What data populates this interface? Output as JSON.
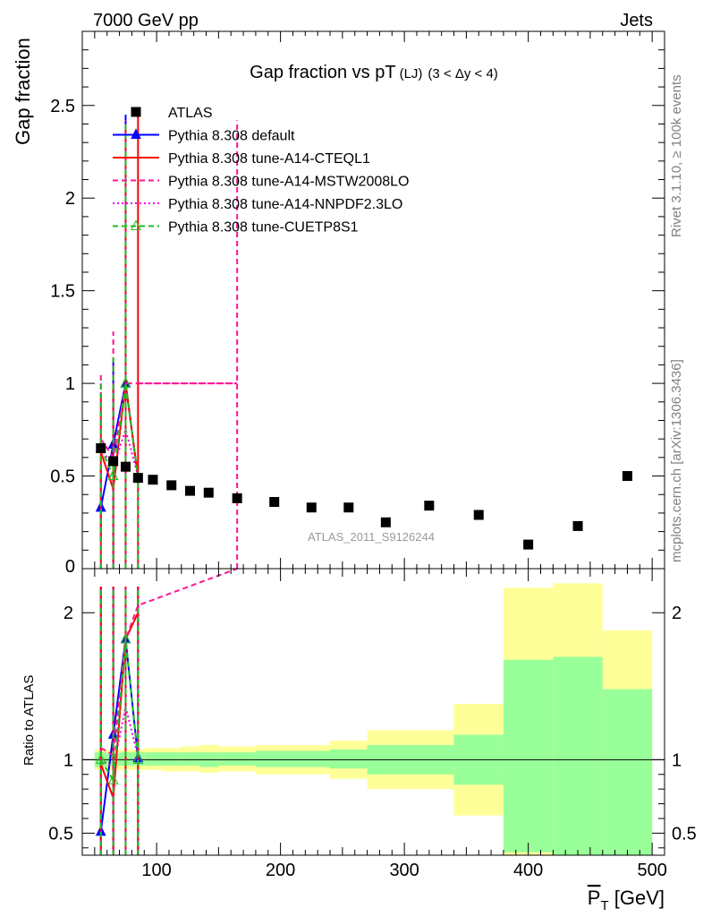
{
  "header": {
    "energy_label": "7000 GeV pp",
    "process_label": "Jets",
    "side_label_rivet": "Rivet 3.1.10, ≥ 100k events",
    "side_label_ref": "mcplots.cern.ch [arXiv:1306.3436]",
    "watermark": "ATLAS_2011_S9126244"
  },
  "chart_data": [
    {
      "type": "scatter",
      "title": "Gap fraction vs pT",
      "title_sub": "(LJ)",
      "title_range": "(3 < Δy < 4)",
      "ylabel": "Gap fraction",
      "xlabel": "P̅T [GeV]",
      "xlim": [
        40,
        510
      ],
      "ylim": [
        0,
        2.9
      ],
      "yticks": [
        "0.5",
        "1",
        "1.5",
        "2",
        "2.5"
      ],
      "xticks": [
        "100",
        "200",
        "300",
        "400",
        "500"
      ],
      "legend_position": "top-left",
      "legend": [
        {
          "label": "ATLAS",
          "style": "marker",
          "color": "#000000"
        },
        {
          "label": "Pythia 8.308 default",
          "style": "solid-triangle",
          "color": "#0000ff"
        },
        {
          "label": "Pythia 8.308 tune-A14-CTEQL1",
          "style": "solid",
          "color": "#ff0000"
        },
        {
          "label": "Pythia 8.308 tune-A14-MSTW2008LO",
          "style": "dashed",
          "color": "#ff1493"
        },
        {
          "label": "Pythia 8.308 tune-A14-NNPDF2.3LO",
          "style": "dotted",
          "color": "#ee00ee"
        },
        {
          "label": "Pythia 8.308 tune-CUETP8S1",
          "style": "dashed-triangle",
          "color": "#22bb22"
        }
      ],
      "atlas": [
        {
          "x": 55,
          "y": 0.65
        },
        {
          "x": 65,
          "y": 0.58
        },
        {
          "x": 75,
          "y": 0.55
        },
        {
          "x": 85,
          "y": 0.49
        },
        {
          "x": 97,
          "y": 0.48
        },
        {
          "x": 112,
          "y": 0.45
        },
        {
          "x": 127,
          "y": 0.42
        },
        {
          "x": 142,
          "y": 0.41
        },
        {
          "x": 165,
          "y": 0.38
        },
        {
          "x": 195,
          "y": 0.36
        },
        {
          "x": 225,
          "y": 0.33
        },
        {
          "x": 255,
          "y": 0.33
        },
        {
          "x": 285,
          "y": 0.25
        },
        {
          "x": 320,
          "y": 0.34
        },
        {
          "x": 360,
          "y": 0.29
        },
        {
          "x": 400,
          "y": 0.13
        },
        {
          "x": 440,
          "y": 0.23
        },
        {
          "x": 480,
          "y": 0.5
        }
      ],
      "series": [
        {
          "name": "Pythia 8.308 default",
          "color": "#0000ff",
          "x": [
            55,
            65,
            75,
            85
          ],
          "y": [
            0.33,
            0.67,
            1.0,
            0.49
          ],
          "err": [
            [
              0.15,
              0.55
            ],
            [
              0.0,
              1.12
            ],
            [
              0.0,
              2.45
            ],
            [
              0.49,
              0.49
            ]
          ]
        },
        {
          "name": "Pythia 8.308 tune-A14-CTEQL1",
          "color": "#ff0000",
          "x": [
            55,
            65,
            75,
            85
          ],
          "y": [
            0.63,
            0.43,
            1.0,
            0.49
          ],
          "err": [
            [
              0.0,
              0.95
            ],
            [
              0.0,
              1.0
            ],
            [
              0.0,
              2.4
            ],
            [
              0.0,
              2.45
            ]
          ]
        },
        {
          "name": "Pythia 8.308 tune-A14-MSTW2008LO",
          "color": "#ff1493",
          "x": [
            55,
            65,
            75,
            85,
            165
          ],
          "y": [
            0.7,
            0.6,
            1.0,
            1.0,
            1.0
          ],
          "err": [
            [
              0.0,
              1.06
            ],
            [
              0.0,
              1.28
            ],
            [
              0.0,
              2.42
            ],
            [
              0.0,
              0.0
            ],
            [
              0.0,
              2.42
            ]
          ]
        },
        {
          "name": "Pythia 8.308 tune-A14-NNPDF2.3LO",
          "color": "#ee00ee",
          "x": [
            55,
            65,
            75,
            85
          ],
          "y": [
            0.65,
            0.55,
            0.75,
            0.5
          ],
          "err": [
            [
              0.0,
              1.0
            ],
            [
              0.0,
              1.1
            ],
            [
              0.0,
              2.4
            ],
            [
              0.0,
              0.5
            ]
          ]
        },
        {
          "name": "Pythia 8.308 tune-CUETP8S1",
          "color": "#22bb22",
          "x": [
            55,
            65,
            75,
            85
          ],
          "y": [
            0.65,
            0.5,
            1.0,
            0.49
          ],
          "err": [
            [
              0.0,
              1.02
            ],
            [
              0.0,
              1.15
            ],
            [
              0.0,
              2.4
            ],
            [
              0.0,
              0.49
            ]
          ]
        }
      ]
    },
    {
      "type": "line",
      "ylabel": "Ratio to ATLAS",
      "xlim": [
        40,
        510
      ],
      "ylim": [
        0.35,
        2.3
      ],
      "yticks": [
        "0.5",
        "1",
        "2"
      ],
      "bands": [
        {
          "x0": 50,
          "x1": 60,
          "y1lo": 0.95,
          "y1hi": 1.05,
          "y2lo": 0.93,
          "y2hi": 1.07
        },
        {
          "x0": 60,
          "x1": 70,
          "y1lo": 0.96,
          "y1hi": 1.04,
          "y2lo": 0.93,
          "y2hi": 1.07
        },
        {
          "x0": 70,
          "x1": 80,
          "y1lo": 0.96,
          "y1hi": 1.05,
          "y2lo": 0.93,
          "y2hi": 1.07
        },
        {
          "x0": 80,
          "x1": 90,
          "y1lo": 0.96,
          "y1hi": 1.05,
          "y2lo": 0.93,
          "y2hi": 1.07
        },
        {
          "x0": 90,
          "x1": 105,
          "y1lo": 0.96,
          "y1hi": 1.05,
          "y2lo": 0.93,
          "y2hi": 1.08
        },
        {
          "x0": 105,
          "x1": 120,
          "y1lo": 0.96,
          "y1hi": 1.05,
          "y2lo": 0.92,
          "y2hi": 1.08
        },
        {
          "x0": 120,
          "x1": 135,
          "y1lo": 0.96,
          "y1hi": 1.05,
          "y2lo": 0.92,
          "y2hi": 1.09
        },
        {
          "x0": 135,
          "x1": 150,
          "y1lo": 0.95,
          "y1hi": 1.05,
          "y2lo": 0.91,
          "y2hi": 1.1
        },
        {
          "x0": 150,
          "x1": 180,
          "y1lo": 0.96,
          "y1hi": 1.05,
          "y2lo": 0.92,
          "y2hi": 1.09
        },
        {
          "x0": 180,
          "x1": 210,
          "y1lo": 0.95,
          "y1hi": 1.06,
          "y2lo": 0.9,
          "y2hi": 1.1
        },
        {
          "x0": 210,
          "x1": 240,
          "y1lo": 0.95,
          "y1hi": 1.06,
          "y2lo": 0.9,
          "y2hi": 1.1
        },
        {
          "x0": 240,
          "x1": 270,
          "y1lo": 0.94,
          "y1hi": 1.07,
          "y2lo": 0.87,
          "y2hi": 1.13
        },
        {
          "x0": 270,
          "x1": 340,
          "y1lo": 0.9,
          "y1hi": 1.1,
          "y2lo": 0.8,
          "y2hi": 1.2
        },
        {
          "x0": 340,
          "x1": 380,
          "y1lo": 0.83,
          "y1hi": 1.17,
          "y2lo": 0.62,
          "y2hi": 1.38
        },
        {
          "x0": 380,
          "x1": 420,
          "y1lo": 0.37,
          "y1hi": 1.68,
          "y2lo": 0.35,
          "y2hi": 2.17
        },
        {
          "x0": 420,
          "x1": 460,
          "y1lo": 0.35,
          "y1hi": 1.7,
          "y2lo": 0.35,
          "y2hi": 2.2
        },
        {
          "x0": 460,
          "x1": 500,
          "y1lo": 0.35,
          "y1hi": 1.48,
          "y2lo": 0.35,
          "y2hi": 1.88
        }
      ],
      "series": [
        {
          "name": "Pythia 8.308 default",
          "color": "#0000ff",
          "x": [
            55,
            65,
            75,
            85
          ],
          "y": [
            0.51,
            1.17,
            1.82,
            1.01
          ]
        },
        {
          "name": "Pythia 8.308 tune-A14-CTEQL1",
          "color": "#ff0000",
          "x": [
            55,
            65,
            75,
            85
          ],
          "y": [
            0.97,
            0.74,
            1.82,
            2.0
          ]
        },
        {
          "name": "Pythia 8.308 tune-A14-MSTW2008LO",
          "color": "#ff1493",
          "x": [
            55,
            65,
            75,
            85,
            165
          ],
          "y": [
            1.08,
            1.03,
            1.82,
            2.05,
            2.3
          ]
        },
        {
          "name": "Pythia 8.308 tune-A14-NNPDF2.3LO",
          "color": "#ee00ee",
          "x": [
            55,
            65,
            75,
            85
          ],
          "y": [
            1.0,
            0.95,
            1.36,
            1.02
          ]
        },
        {
          "name": "Pythia 8.308 tune-CUETP8S1",
          "color": "#22bb22",
          "x": [
            55,
            65,
            75,
            85
          ],
          "y": [
            1.0,
            0.86,
            1.82,
            1.0
          ]
        }
      ]
    }
  ]
}
